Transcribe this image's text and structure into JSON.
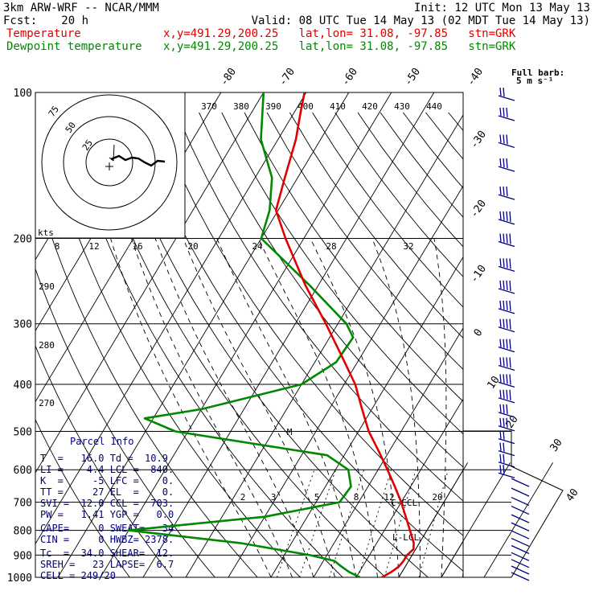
{
  "header": {
    "model": "3km ARW-WRF -- NCAR/MMM",
    "init": "Init: 12 UTC Mon 13 May 13",
    "fcst_label": "Fcst:",
    "fcst_value": "20 h",
    "valid": "Valid: 08 UTC Tue 14 May 13 (02 MDT Tue 14 May 13)",
    "temp_label": "Temperature",
    "temp_loc": "x,y=491.29,200.25   lat,lon= 31.08, -97.85   stn=GRK",
    "dew_label": "Dewpoint temperature",
    "dew_loc": "x,y=491.29,200.25   lat,lon= 31.08, -97.85   stn=GRK",
    "barb_title": "Full barb:",
    "barb_units": "5 m s⁻¹"
  },
  "colors": {
    "temperature": "#e00000",
    "dewpoint": "#008800",
    "barbs": "#00007a",
    "parcel": "#00007a"
  },
  "chart_data": {
    "type": "line",
    "diagram": "skew-T log-p",
    "pressure_levels": [
      100,
      200,
      300,
      400,
      500,
      600,
      700,
      800,
      900,
      1000
    ],
    "pressure_labels": [
      "100",
      "200",
      "300",
      "400",
      "500",
      "600",
      "700",
      "800",
      "900",
      "1000"
    ],
    "isotherm_labels": [
      "-80",
      "-70",
      "-60",
      "-50",
      "-40",
      "-30",
      "-20",
      "-10",
      "0",
      "10",
      "20",
      "30",
      "40"
    ],
    "theta_labels": [
      "370",
      "380",
      "390",
      "400",
      "410",
      "420",
      "430",
      "440"
    ],
    "dry_adiabat_labels": [
      "290",
      "280",
      "270"
    ],
    "mixing_ratio_labels": [
      "2",
      "3",
      "5",
      "8",
      "12",
      "20"
    ],
    "hodo_speed_labels": [
      "8",
      "12",
      "16",
      "20",
      "24",
      "28",
      "32"
    ],
    "hodo_ring_labels": [
      "75",
      "50",
      "25"
    ],
    "hodo_units": "kts",
    "marker_labels": {
      "top": "M",
      "ccl": "C-CCL",
      "lcl": "L-LCL"
    },
    "temperature_profile": [
      {
        "p": 1000,
        "t": 16.0
      },
      {
        "p": 975,
        "t": 17.5
      },
      {
        "p": 950,
        "t": 18.5
      },
      {
        "p": 925,
        "t": 18.8
      },
      {
        "p": 900,
        "t": 18.8
      },
      {
        "p": 875,
        "t": 19.5
      },
      {
        "p": 850,
        "t": 18.7
      },
      {
        "p": 800,
        "t": 16.0
      },
      {
        "p": 750,
        "t": 13.1
      },
      {
        "p": 700,
        "t": 10.0
      },
      {
        "p": 650,
        "t": 6.3
      },
      {
        "p": 600,
        "t": 2.2
      },
      {
        "p": 550,
        "t": -2.4
      },
      {
        "p": 500,
        "t": -7.6
      },
      {
        "p": 450,
        "t": -12.3
      },
      {
        "p": 400,
        "t": -17.4
      },
      {
        "p": 350,
        "t": -24.5
      },
      {
        "p": 300,
        "t": -32.8
      },
      {
        "p": 250,
        "t": -43.0
      },
      {
        "p": 200,
        "t": -54.3
      },
      {
        "p": 175,
        "t": -60.5
      },
      {
        "p": 150,
        "t": -63.0
      },
      {
        "p": 125,
        "t": -65.8
      },
      {
        "p": 110,
        "t": -68.5
      },
      {
        "p": 100,
        "t": -70.4
      }
    ],
    "dewpoint_profile": [
      {
        "p": 1000,
        "t": 10.9
      },
      {
        "p": 975,
        "t": 7.6
      },
      {
        "p": 950,
        "t": 5.0
      },
      {
        "p": 925,
        "t": 2.6
      },
      {
        "p": 900,
        "t": -4.0
      },
      {
        "p": 850,
        "t": -22.0
      },
      {
        "p": 800,
        "t": -50.0
      },
      {
        "p": 750,
        "t": -20.0
      },
      {
        "p": 700,
        "t": -4.5
      },
      {
        "p": 650,
        "t": -4.0
      },
      {
        "p": 600,
        "t": -7.0
      },
      {
        "p": 560,
        "t": -14.0
      },
      {
        "p": 500,
        "t": -53.0
      },
      {
        "p": 470,
        "t": -62.0
      },
      {
        "p": 450,
        "t": -50.0
      },
      {
        "p": 400,
        "t": -30.0
      },
      {
        "p": 360,
        "t": -25.0
      },
      {
        "p": 320,
        "t": -24.5
      },
      {
        "p": 300,
        "t": -28.0
      },
      {
        "p": 250,
        "t": -42.0
      },
      {
        "p": 200,
        "t": -60.0
      },
      {
        "p": 175,
        "t": -62.0
      },
      {
        "p": 150,
        "t": -66.0
      },
      {
        "p": 125,
        "t": -74.0
      },
      {
        "p": 100,
        "t": -80.0
      }
    ],
    "wind_barbs": [
      {
        "p": 100,
        "n": 2
      },
      {
        "p": 110,
        "n": 3
      },
      {
        "p": 125,
        "n": 3
      },
      {
        "p": 140,
        "n": 3
      },
      {
        "p": 160,
        "n": 3
      },
      {
        "p": 180,
        "n": 4
      },
      {
        "p": 200,
        "n": 4
      },
      {
        "p": 225,
        "n": 4
      },
      {
        "p": 250,
        "n": 4
      },
      {
        "p": 275,
        "n": 4
      },
      {
        "p": 300,
        "n": 4
      },
      {
        "p": 330,
        "n": 4
      },
      {
        "p": 360,
        "n": 4
      },
      {
        "p": 390,
        "n": 4
      },
      {
        "p": 420,
        "n": 4
      },
      {
        "p": 450,
        "n": 3
      },
      {
        "p": 480,
        "n": 3
      },
      {
        "p": 510,
        "n": 2
      },
      {
        "p": 540,
        "n": 2
      },
      {
        "p": 570,
        "n": 2
      },
      {
        "p": 600,
        "n": 2
      }
    ]
  },
  "parcel_info": {
    "title": "Parcel Info",
    "rows": [
      "T  =   16.0 Td =  10.9",
      "LI =    4.4 LCL =  840.",
      "K  =     -5 LFC =    0.",
      "TT =     27 EL  =    0.",
      "SVI =  12.0 CCL =  703.",
      "PW =   1.41 YGP =   0.0",
      "CAPE=     0 SWEAT=   34",
      "CIN =     0 HWBZ= 2378.",
      "Tc  =  34.0 SHEAR=  12.",
      "SREH =   23 LAPSE=  6.7",
      "CELL = 249/20"
    ]
  }
}
